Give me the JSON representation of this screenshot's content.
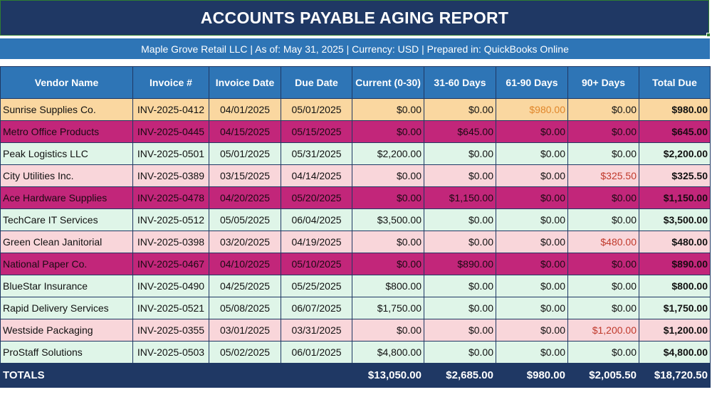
{
  "report": {
    "title": "ACCOUNTS PAYABLE AGING REPORT",
    "subtitle": "Maple Grove Retail LLC  |  As of: May 31, 2025  |  Currency: USD  |  Prepared in: QuickBooks Online"
  },
  "columns": [
    "Vendor Name",
    "Invoice #",
    "Invoice Date",
    "Due Date",
    "Current (0-30)",
    "31-60 Days",
    "61-90 Days",
    "90+ Days",
    "Total Due"
  ],
  "rows": [
    {
      "vendor": "Sunrise Supplies Co.",
      "invoice": "INV-2025-0412",
      "invoice_date": "04/01/2025",
      "due_date": "05/01/2025",
      "current": "$0.00",
      "d31_60": "$0.00",
      "d61_90": "$980.00",
      "d90": "$0.00",
      "total": "$980.00",
      "style": "orange"
    },
    {
      "vendor": "Metro Office Products",
      "invoice": "INV-2025-0445",
      "invoice_date": "04/15/2025",
      "due_date": "05/15/2025",
      "current": "$0.00",
      "d31_60": "$645.00",
      "d61_90": "$0.00",
      "d90": "$0.00",
      "total": "$645.00",
      "style": "magenta"
    },
    {
      "vendor": "Peak Logistics LLC",
      "invoice": "INV-2025-0501",
      "invoice_date": "05/01/2025",
      "due_date": "05/31/2025",
      "current": "$2,200.00",
      "d31_60": "$0.00",
      "d61_90": "$0.00",
      "d90": "$0.00",
      "total": "$2,200.00",
      "style": "green"
    },
    {
      "vendor": "City Utilities Inc.",
      "invoice": "INV-2025-0389",
      "invoice_date": "03/15/2025",
      "due_date": "04/14/2025",
      "current": "$0.00",
      "d31_60": "$0.00",
      "d61_90": "$0.00",
      "d90": "$325.50",
      "total": "$325.50",
      "style": "pink"
    },
    {
      "vendor": "Ace Hardware Supplies",
      "invoice": "INV-2025-0478",
      "invoice_date": "04/20/2025",
      "due_date": "05/20/2025",
      "current": "$0.00",
      "d31_60": "$1,150.00",
      "d61_90": "$0.00",
      "d90": "$0.00",
      "total": "$1,150.00",
      "style": "magenta"
    },
    {
      "vendor": "TechCare IT Services",
      "invoice": "INV-2025-0512",
      "invoice_date": "05/05/2025",
      "due_date": "06/04/2025",
      "current": "$3,500.00",
      "d31_60": "$0.00",
      "d61_90": "$0.00",
      "d90": "$0.00",
      "total": "$3,500.00",
      "style": "green"
    },
    {
      "vendor": "Green Clean Janitorial",
      "invoice": "INV-2025-0398",
      "invoice_date": "03/20/2025",
      "due_date": "04/19/2025",
      "current": "$0.00",
      "d31_60": "$0.00",
      "d61_90": "$0.00",
      "d90": "$480.00",
      "total": "$480.00",
      "style": "pink"
    },
    {
      "vendor": "National Paper Co.",
      "invoice": "INV-2025-0467",
      "invoice_date": "04/10/2025",
      "due_date": "05/10/2025",
      "current": "$0.00",
      "d31_60": "$890.00",
      "d61_90": "$0.00",
      "d90": "$0.00",
      "total": "$890.00",
      "style": "magenta"
    },
    {
      "vendor": "BlueStar Insurance",
      "invoice": "INV-2025-0490",
      "invoice_date": "04/25/2025",
      "due_date": "05/25/2025",
      "current": "$800.00",
      "d31_60": "$0.00",
      "d61_90": "$0.00",
      "d90": "$0.00",
      "total": "$800.00",
      "style": "green"
    },
    {
      "vendor": "Rapid Delivery Services",
      "invoice": "INV-2025-0521",
      "invoice_date": "05/08/2025",
      "due_date": "06/07/2025",
      "current": "$1,750.00",
      "d31_60": "$0.00",
      "d61_90": "$0.00",
      "d90": "$0.00",
      "total": "$1,750.00",
      "style": "green"
    },
    {
      "vendor": "Westside Packaging",
      "invoice": "INV-2025-0355",
      "invoice_date": "03/01/2025",
      "due_date": "03/31/2025",
      "current": "$0.00",
      "d31_60": "$0.00",
      "d61_90": "$0.00",
      "d90": "$1,200.00",
      "total": "$1,200.00",
      "style": "pink"
    },
    {
      "vendor": "ProStaff Solutions",
      "invoice": "INV-2025-0503",
      "invoice_date": "05/02/2025",
      "due_date": "06/01/2025",
      "current": "$4,800.00",
      "d31_60": "$0.00",
      "d61_90": "$0.00",
      "d90": "$0.00",
      "total": "$4,800.00",
      "style": "green"
    }
  ],
  "totals": {
    "label": "TOTALS",
    "current": "$13,050.00",
    "d31_60": "$2,685.00",
    "d61_90": "$980.00",
    "d90": "$2,005.50",
    "total": "$18,720.50"
  },
  "colors": {
    "title_bg": "#1f3864",
    "header_bg": "#2e75b6",
    "row_orange": "#fad7a0",
    "row_magenta": "#c2267a",
    "row_green": "#dff5e8",
    "row_pink": "#f9d6da",
    "text_orange": "#e0862a",
    "text_red": "#c0392b"
  }
}
